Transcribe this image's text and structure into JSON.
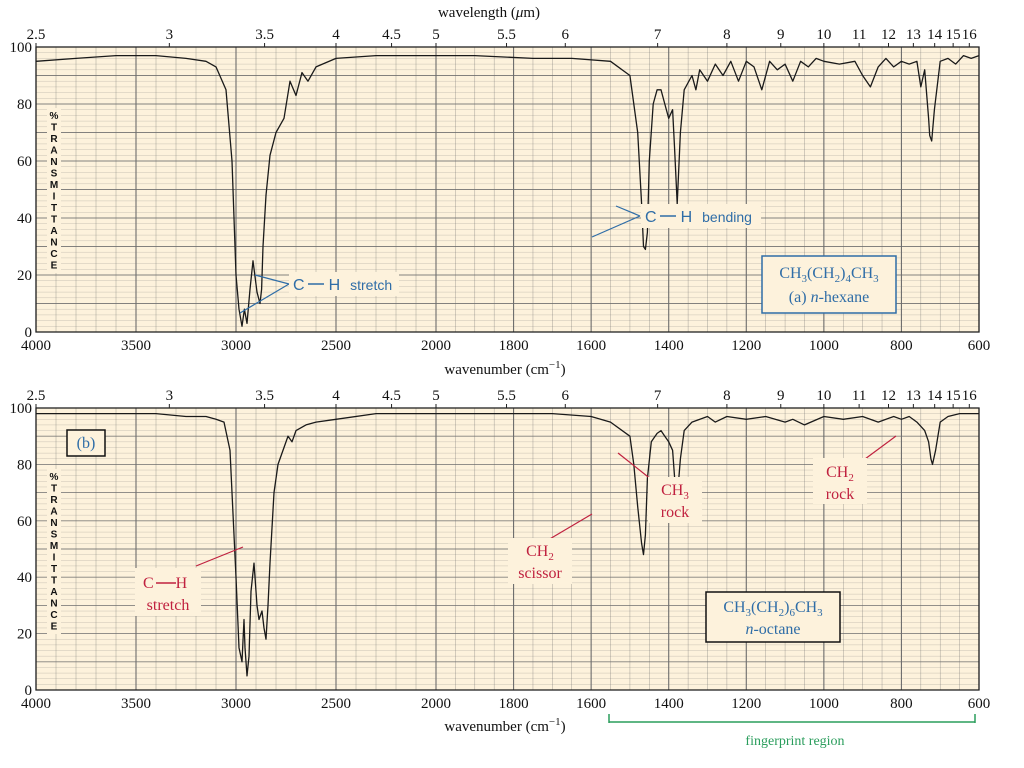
{
  "colors": {
    "plot_bg": "#fdf2dc",
    "grid": "#6d6d6d",
    "trace": "#1a1a1a",
    "blue": "#2f6da7",
    "red": "#c0213f",
    "green": "#2a9d5c",
    "label_bg": "#fdf2dc"
  },
  "chart_data": [
    {
      "type": "line",
      "panel_id": "a",
      "top_axis": {
        "label": "wavelength (μm)",
        "tick_labels": [
          "2.5",
          "3",
          "3.5",
          "4",
          "4.5",
          "5",
          "5.5",
          "6",
          "7",
          "8",
          "9",
          "10",
          "11",
          "12",
          "13",
          "14",
          "15",
          "16"
        ]
      },
      "bottom_axis": {
        "label": "wavenumber (cm⁻¹)",
        "tick_labels": [
          "4000",
          "3500",
          "3000",
          "2500",
          "2000",
          "1800",
          "1600",
          "1400",
          "1200",
          "1000",
          "800",
          "600"
        ]
      },
      "y_axis": {
        "label": "% TRANSMITTANCE",
        "tick_labels": [
          "0",
          "20",
          "40",
          "60",
          "80",
          "100"
        ],
        "range": [
          0,
          100
        ]
      },
      "series": [
        {
          "x": [
            4000,
            3800,
            3600,
            3400,
            3250,
            3150,
            3100,
            3050,
            3020,
            3000,
            2985,
            2970,
            2958,
            2945,
            2930,
            2915,
            2895,
            2880,
            2872,
            2865,
            2850,
            2830,
            2800,
            2760,
            2730,
            2700,
            2670,
            2640,
            2600,
            2500,
            2300,
            2100,
            1900,
            1750,
            1650,
            1550,
            1500,
            1480,
            1470,
            1465,
            1460,
            1455,
            1450,
            1440,
            1430,
            1420,
            1410,
            1400,
            1390,
            1385,
            1378,
            1370,
            1360,
            1340,
            1330,
            1320,
            1300,
            1280,
            1260,
            1240,
            1220,
            1200,
            1180,
            1160,
            1140,
            1120,
            1100,
            1080,
            1060,
            1040,
            1020,
            1000,
            960,
            920,
            900,
            880,
            860,
            840,
            820,
            800,
            780,
            760,
            750,
            740,
            730,
            727,
            722,
            715,
            700,
            680,
            660,
            640,
            620,
            600
          ],
          "y": [
            95,
            96,
            97,
            97,
            96,
            95,
            93,
            85,
            60,
            20,
            8,
            2,
            8,
            3,
            15,
            25,
            14,
            10,
            15,
            30,
            48,
            62,
            70,
            75,
            88,
            83,
            91,
            88,
            93,
            96,
            97,
            97,
            97,
            96,
            96,
            95,
            90,
            70,
            45,
            30,
            29,
            35,
            60,
            80,
            85,
            85,
            80,
            75,
            78,
            65,
            45,
            70,
            85,
            90,
            85,
            92,
            88,
            94,
            90,
            95,
            88,
            95,
            93,
            85,
            95,
            92,
            94,
            88,
            95,
            93,
            96,
            95,
            94,
            95,
            90,
            86,
            93,
            96,
            93,
            95,
            94,
            95,
            86,
            92,
            75,
            69,
            67,
            78,
            95,
            96,
            94,
            97,
            96,
            97
          ]
        }
      ],
      "annotations": [
        {
          "text": "C—H stretch",
          "color": "blue"
        },
        {
          "text": "C—H bending",
          "color": "blue"
        }
      ],
      "compound_box": {
        "formula": "CH3(CH2)4CH3",
        "name_prefix": "(a) ",
        "name_italic": "n",
        "name_suffix": "-hexane"
      }
    },
    {
      "type": "line",
      "panel_id": "b",
      "panel_label": "(b)",
      "top_axis": {
        "tick_labels": [
          "2.5",
          "3",
          "3.5",
          "4",
          "4.5",
          "5",
          "5.5",
          "6",
          "7",
          "8",
          "9",
          "10",
          "11",
          "12",
          "13",
          "14",
          "15",
          "16"
        ]
      },
      "bottom_axis": {
        "label": "wavenumber (cm⁻¹)",
        "tick_labels": [
          "4000",
          "3500",
          "3000",
          "2500",
          "2000",
          "1800",
          "1600",
          "1400",
          "1200",
          "1000",
          "800",
          "600"
        ]
      },
      "y_axis": {
        "label": "% TRANSMITTANCE",
        "tick_labels": [
          "0",
          "20",
          "40",
          "60",
          "80",
          "100"
        ],
        "range": [
          0,
          100
        ]
      },
      "series": [
        {
          "x": [
            4000,
            3800,
            3600,
            3400,
            3250,
            3150,
            3100,
            3060,
            3030,
            3000,
            2985,
            2970,
            2960,
            2955,
            2945,
            2935,
            2925,
            2910,
            2895,
            2885,
            2870,
            2860,
            2850,
            2840,
            2830,
            2810,
            2790,
            2760,
            2740,
            2720,
            2700,
            2650,
            2600,
            2500,
            2300,
            2100,
            1900,
            1700,
            1600,
            1550,
            1500,
            1490,
            1480,
            1470,
            1465,
            1460,
            1455,
            1445,
            1430,
            1420,
            1410,
            1400,
            1390,
            1383,
            1378,
            1370,
            1360,
            1340,
            1300,
            1280,
            1250,
            1200,
            1150,
            1100,
            1080,
            1050,
            1000,
            950,
            900,
            860,
            820,
            800,
            780,
            760,
            740,
            730,
            724,
            720,
            712,
            700,
            680,
            650,
            620,
            600
          ],
          "y": [
            98,
            98,
            98,
            98,
            97,
            97,
            96,
            95,
            85,
            40,
            15,
            10,
            25,
            15,
            5,
            12,
            35,
            45,
            30,
            25,
            28,
            22,
            18,
            30,
            45,
            70,
            80,
            86,
            90,
            88,
            92,
            94,
            95,
            96,
            98,
            98,
            98,
            98,
            97,
            95,
            90,
            80,
            65,
            52,
            48,
            55,
            75,
            88,
            91,
            92,
            90,
            88,
            85,
            72,
            68,
            82,
            92,
            95,
            97,
            95,
            97,
            96,
            97,
            95,
            96,
            94,
            97,
            96,
            97,
            95,
            97,
            96,
            97,
            95,
            92,
            88,
            82,
            80,
            85,
            95,
            97,
            98,
            98,
            98
          ]
        }
      ],
      "annotations": [
        {
          "text": "C—H stretch",
          "color": "red"
        },
        {
          "text": "CH2 scissor",
          "color": "red"
        },
        {
          "text": "CH3 rock",
          "color": "red"
        },
        {
          "text": "CH2 rock",
          "color": "red"
        },
        {
          "text": "fingerprint region",
          "color": "green"
        }
      ],
      "compound_box": {
        "formula": "CH3(CH2)6CH3",
        "name_italic": "n",
        "name_suffix": "-octane"
      }
    }
  ],
  "labels": {
    "top_title": "wavelength (",
    "top_title_mu": "μ",
    "top_title_end": "m)",
    "wavenumber": "wavenumber (cm",
    "wavenumber_sup": "−1",
    "wavenumber_end": ")",
    "side_letters": [
      "%",
      "T",
      "R",
      "A",
      "N",
      "S",
      "M",
      "I",
      "T",
      "T",
      "A",
      "N",
      "C",
      "E"
    ],
    "a_ch_stretch_1": "C",
    "a_ch_stretch_2": "H",
    "a_ch_stretch_3": "stretch",
    "a_ch_bending_1": "C",
    "a_ch_bending_2": "H",
    "a_ch_bending_3": "bending",
    "a_formula_pre": "CH",
    "a_formula_3a": "3",
    "a_formula_mid": "(CH",
    "a_formula_2": "2",
    "a_formula_close": ")",
    "a_formula_4": "4",
    "a_formula_ch": "CH",
    "a_formula_3b": "3",
    "a_name_prefix": "(a) ",
    "a_name_italic": "n",
    "a_name_suffix": "-hexane",
    "b_panel_label": "(b)",
    "b_ch_1": "C",
    "b_ch_2": "H",
    "b_stretch": "stretch",
    "b_ch2_scissor_1": "CH",
    "b_ch2_scissor_sub": "2",
    "b_scissor": "scissor",
    "b_ch3_rock_1": "CH",
    "b_ch3_rock_sub": "3",
    "b_rock1": "rock",
    "b_ch2_rock_1": "CH",
    "b_ch2_rock_sub": "2",
    "b_rock2": "rock",
    "b_formula_pre": "CH",
    "b_formula_3a": "3",
    "b_formula_mid": "(CH",
    "b_formula_2": "2",
    "b_formula_close": ")",
    "b_formula_6": "6",
    "b_formula_ch": "CH",
    "b_formula_3b": "3",
    "b_name_italic": "n",
    "b_name_suffix": "-octane",
    "fingerprint": "fingerprint region"
  }
}
